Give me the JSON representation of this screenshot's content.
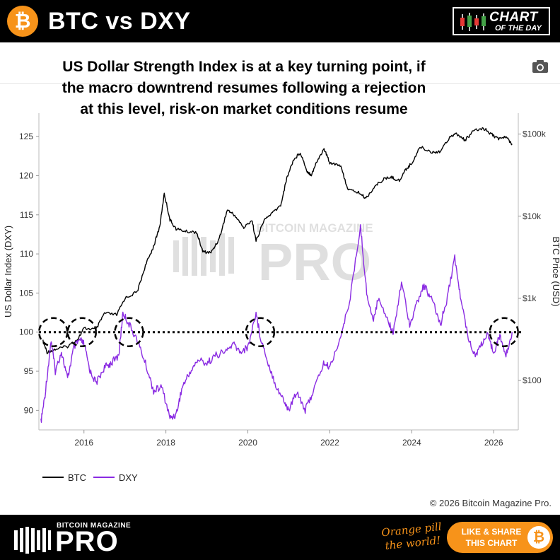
{
  "header": {
    "logo_symbol": "₿",
    "title": "BTC vs DXY",
    "badge_line1": "CHART",
    "badge_line2": "OF THE DAY"
  },
  "subtitle_lines": [
    "US Dollar Strength Index is at a key turning point, if",
    "the macro downtrend resumes following a rejection",
    "at this level, risk-on market conditions resume"
  ],
  "watermark_small": "BITCOIN MAGAZINE",
  "watermark_big": "PRO",
  "chart_data": {
    "type": "line",
    "ylabel_left": "US Dollar Index (DXY)",
    "ylabel_right": "BTC Price (USD)",
    "x_ticks": [
      "2016",
      "2018",
      "2020",
      "2022",
      "2024",
      "2026"
    ],
    "x_range": [
      2014.9,
      2026.6
    ],
    "y_left_range": [
      87.5,
      128
    ],
    "y_left_ticks": [
      "90",
      "95",
      "100",
      "105",
      "110",
      "115",
      "120",
      "125"
    ],
    "y_right_scale": "log",
    "y_right_range": [
      25,
      180000
    ],
    "y_right_ticks": [
      "$100",
      "$1k",
      "$10k",
      "$100k"
    ],
    "reference_line": {
      "value": 100,
      "style": "dotted"
    },
    "highlight_circles": [
      {
        "x": 2015.25,
        "y": 100
      },
      {
        "x": 2015.95,
        "y": 100
      },
      {
        "x": 2017.1,
        "y": 100
      },
      {
        "x": 2020.3,
        "y": 100
      },
      {
        "x": 2026.25,
        "y": 100
      }
    ],
    "legend_position": "bottom-left",
    "series": [
      {
        "name": "BTC",
        "axis": "right",
        "color": "#000000",
        "points": [
          [
            2015.0,
            300
          ],
          [
            2015.1,
            220
          ],
          [
            2015.3,
            240
          ],
          [
            2015.6,
            260
          ],
          [
            2015.85,
            320
          ],
          [
            2016.0,
            430
          ],
          [
            2016.3,
            420
          ],
          [
            2016.5,
            660
          ],
          [
            2016.8,
            630
          ],
          [
            2017.0,
            1000
          ],
          [
            2017.3,
            1200
          ],
          [
            2017.5,
            2500
          ],
          [
            2017.7,
            4300
          ],
          [
            2017.85,
            7500
          ],
          [
            2017.96,
            19000
          ],
          [
            2018.1,
            9000
          ],
          [
            2018.25,
            7000
          ],
          [
            2018.5,
            6500
          ],
          [
            2018.75,
            6400
          ],
          [
            2018.9,
            3700
          ],
          [
            2019.1,
            3600
          ],
          [
            2019.3,
            5300
          ],
          [
            2019.5,
            12000
          ],
          [
            2019.7,
            10000
          ],
          [
            2019.9,
            7200
          ],
          [
            2020.1,
            9000
          ],
          [
            2020.2,
            5000
          ],
          [
            2020.4,
            9000
          ],
          [
            2020.6,
            11000
          ],
          [
            2020.8,
            13500
          ],
          [
            2020.95,
            29000
          ],
          [
            2021.1,
            47000
          ],
          [
            2021.28,
            60000
          ],
          [
            2021.45,
            35000
          ],
          [
            2021.55,
            32000
          ],
          [
            2021.7,
            48000
          ],
          [
            2021.86,
            66000
          ],
          [
            2022.0,
            45000
          ],
          [
            2022.25,
            42000
          ],
          [
            2022.45,
            21000
          ],
          [
            2022.7,
            19500
          ],
          [
            2022.88,
            16500
          ],
          [
            2023.1,
            23000
          ],
          [
            2023.3,
            28000
          ],
          [
            2023.5,
            30000
          ],
          [
            2023.7,
            27000
          ],
          [
            2023.85,
            37000
          ],
          [
            2024.0,
            44000
          ],
          [
            2024.2,
            70000
          ],
          [
            2024.5,
            60000
          ],
          [
            2024.7,
            62000
          ],
          [
            2024.95,
            96000
          ],
          [
            2025.1,
            100000
          ],
          [
            2025.3,
            84000
          ],
          [
            2025.5,
            108000
          ],
          [
            2025.75,
            118000
          ],
          [
            2025.9,
            104000
          ],
          [
            2026.1,
            88000
          ],
          [
            2026.3,
            92000
          ],
          [
            2026.45,
            76000
          ]
        ]
      },
      {
        "name": "DXY",
        "axis": "left",
        "color": "#8a2be2",
        "points": [
          [
            2014.95,
            88.5
          ],
          [
            2015.05,
            92
          ],
          [
            2015.2,
            99
          ],
          [
            2015.3,
            95
          ],
          [
            2015.45,
            97.5
          ],
          [
            2015.6,
            94
          ],
          [
            2015.75,
            98
          ],
          [
            2015.9,
            99
          ],
          [
            2016.0,
            98.5
          ],
          [
            2016.15,
            95
          ],
          [
            2016.3,
            93.5
          ],
          [
            2016.5,
            95.5
          ],
          [
            2016.65,
            96
          ],
          [
            2016.85,
            97
          ],
          [
            2016.95,
            102.5
          ],
          [
            2017.1,
            101
          ],
          [
            2017.3,
            99
          ],
          [
            2017.5,
            96
          ],
          [
            2017.7,
            92.5
          ],
          [
            2017.9,
            93
          ],
          [
            2018.1,
            89
          ],
          [
            2018.25,
            89.5
          ],
          [
            2018.4,
            93
          ],
          [
            2018.6,
            95
          ],
          [
            2018.8,
            96.5
          ],
          [
            2019.0,
            96
          ],
          [
            2019.2,
            97
          ],
          [
            2019.45,
            97.5
          ],
          [
            2019.65,
            98.5
          ],
          [
            2019.8,
            97.5
          ],
          [
            2020.0,
            98
          ],
          [
            2020.2,
            102.5
          ],
          [
            2020.3,
            99.5
          ],
          [
            2020.5,
            96
          ],
          [
            2020.7,
            93
          ],
          [
            2020.9,
            91
          ],
          [
            2021.0,
            90
          ],
          [
            2021.2,
            92.5
          ],
          [
            2021.4,
            90
          ],
          [
            2021.6,
            92.5
          ],
          [
            2021.85,
            96
          ],
          [
            2022.0,
            95.5
          ],
          [
            2022.3,
            100
          ],
          [
            2022.5,
            104.5
          ],
          [
            2022.75,
            113.5
          ],
          [
            2022.9,
            105
          ],
          [
            2023.05,
            101.5
          ],
          [
            2023.2,
            104.5
          ],
          [
            2023.45,
            101
          ],
          [
            2023.55,
            100
          ],
          [
            2023.75,
            106.5
          ],
          [
            2023.95,
            101
          ],
          [
            2024.15,
            104
          ],
          [
            2024.3,
            106
          ],
          [
            2024.5,
            104
          ],
          [
            2024.7,
            101
          ],
          [
            2024.85,
            104
          ],
          [
            2025.05,
            109.5
          ],
          [
            2025.2,
            104
          ],
          [
            2025.4,
            99
          ],
          [
            2025.55,
            97
          ],
          [
            2025.7,
            98.5
          ],
          [
            2025.85,
            99.5
          ],
          [
            2026.0,
            97.5
          ],
          [
            2026.15,
            99.5
          ],
          [
            2026.3,
            97
          ],
          [
            2026.45,
            100
          ]
        ]
      }
    ]
  },
  "legend": [
    {
      "label": "BTC",
      "color": "#000000"
    },
    {
      "label": "DXY",
      "color": "#8a2be2"
    }
  ],
  "copyright": "© 2026 Bitcoin Magazine Pro.",
  "footer": {
    "brand_small": "BITCOIN MAGAZINE",
    "brand_big": "PRO",
    "slogan_line1": "Orange pill",
    "slogan_line2": "the world!",
    "share_line1": "LIKE & SHARE",
    "share_line2": "THIS CHART",
    "coin_symbol": "₿"
  },
  "icons": {
    "camera": "camera-icon"
  }
}
